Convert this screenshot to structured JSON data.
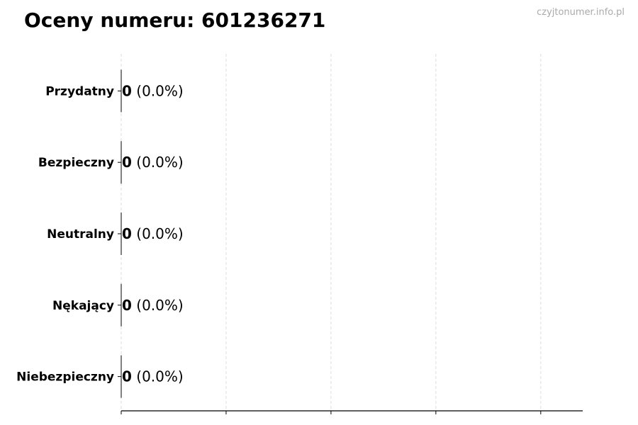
{
  "chart_data": {
    "type": "bar",
    "orientation": "horizontal",
    "title": "Oceny numeru: 601236271",
    "watermark": "czyjtonumer.info.pl",
    "categories": [
      "Przydatny",
      "Bezpieczny",
      "Neutralny",
      "Nękający",
      "Niebezpieczny"
    ],
    "values": [
      0,
      0,
      0,
      0,
      0
    ],
    "labels": [
      {
        "count": "0",
        "pct": "(0.0%)"
      },
      {
        "count": "0",
        "pct": "(0.0%)"
      },
      {
        "count": "0",
        "pct": "(0.0%)"
      },
      {
        "count": "0",
        "pct": "(0.0%)"
      },
      {
        "count": "0",
        "pct": "(0.0%)"
      }
    ],
    "xlim": [
      0,
      4.4
    ],
    "xticks": [
      0,
      1,
      2,
      3,
      4
    ],
    "xtick_labels_shown": false,
    "grid": "x dashed",
    "colors": {
      "grid": "#dddddd",
      "axis": "#000000",
      "watermark": "#aaaaaa"
    }
  }
}
